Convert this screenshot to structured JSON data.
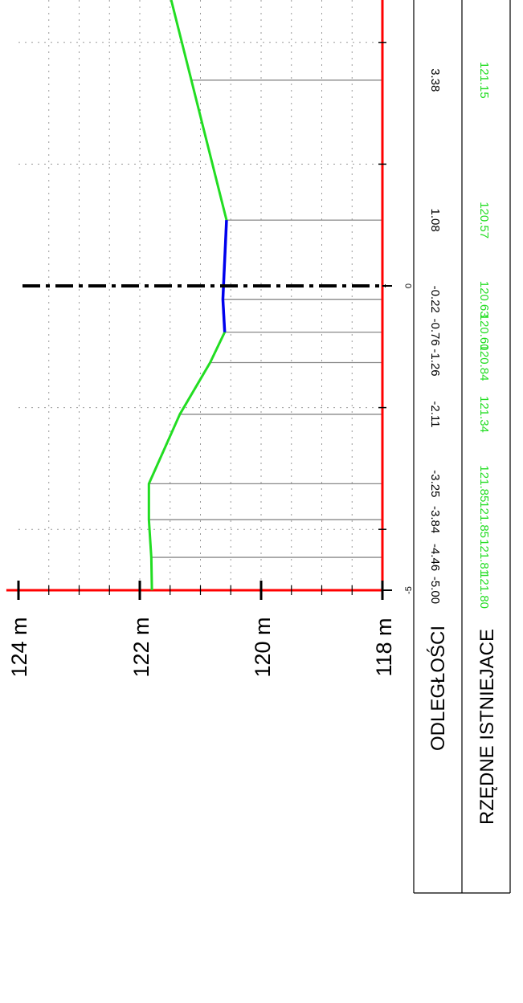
{
  "y_axis": {
    "unit": "m",
    "ticks": [
      {
        "value": 118,
        "label": "118 m"
      },
      {
        "value": 120,
        "label": "120 m"
      },
      {
        "value": 122,
        "label": "122 m"
      },
      {
        "value": 124,
        "label": "124 m"
      }
    ]
  },
  "table": {
    "row1_label": "ODLEGŁOŚCI",
    "row2_label": "RZĘDNE ISTNIEJACE"
  },
  "axis_zero_labels": [
    {
      "x": -5,
      "label": "-5"
    },
    {
      "x": 0,
      "label": "0"
    }
  ],
  "colors": {
    "axis": "#ff0000",
    "terrain": "#22dd22",
    "water": "#0000ee",
    "centerline": "#000000",
    "elevation_text": "#22dd22"
  },
  "chart_data": {
    "type": "line",
    "title": "",
    "xlabel": "",
    "ylabel": "",
    "ylim": [
      118,
      124
    ],
    "x": [
      -5.0,
      -4.46,
      -3.84,
      -3.25,
      -2.11,
      -1.26,
      -0.76,
      -0.22,
      1.08,
      3.38
    ],
    "series": [
      {
        "values": [
          121.8,
          121.81,
          121.85,
          121.85,
          121.34,
          120.84,
          120.6,
          120.63,
          120.57,
          121.15
        ]
      }
    ],
    "distance_labels": [
      "-5.00",
      "-4.46",
      "-3.84",
      "-3.25",
      "-2.11",
      "-1.26",
      "-0.76",
      "-0.22",
      "1.08",
      "3.38"
    ],
    "elevation_labels": [
      "121.80",
      "121.81",
      "121.85",
      "121.85",
      "121.34",
      "120.84",
      "120.60",
      "120.63",
      "120.57",
      "121.15"
    ],
    "water_segment_x": [
      -0.76,
      1.08
    ],
    "centerline_x": 0,
    "grid": true
  }
}
